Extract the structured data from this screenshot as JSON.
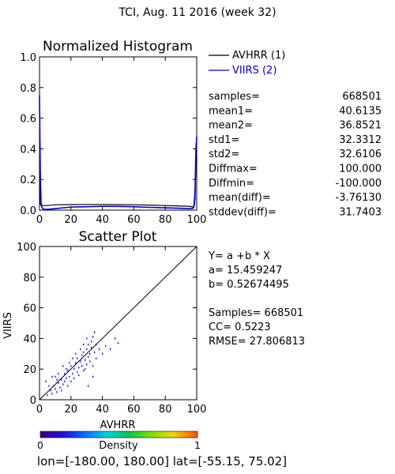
{
  "page_title": "TCI,  Aug. 11 2016 (week 32)",
  "colors": {
    "background": "#ffffff",
    "axis": "#000000",
    "avhrr_line": "#000000",
    "viirs_line": "#0000c8",
    "scatter_points": "#0000ff"
  },
  "histogram": {
    "title": "Normalized Histogram",
    "legend": [
      {
        "label": "AVHRR (1)",
        "color": "#000000"
      },
      {
        "label": "VIIRS (2)",
        "color": "#0000c8"
      }
    ],
    "stats": [
      {
        "label": "samples=",
        "value": "668501"
      },
      {
        "label": "mean1=",
        "value": "40.6135"
      },
      {
        "label": "mean2=",
        "value": "36.8521"
      },
      {
        "label": "std1=",
        "value": "32.3312"
      },
      {
        "label": "std2=",
        "value": "32.6106"
      },
      {
        "label": "Diffmax=",
        "value": "100.000"
      },
      {
        "label": "Diffmin=",
        "value": "-100.000"
      },
      {
        "label": "mean(diff)=",
        "value": "-3.76130"
      },
      {
        "label": "stddev(diff)=",
        "value": "31.7403"
      }
    ]
  },
  "scatter": {
    "title": "Scatter Plot",
    "stats_lines": [
      "Y= a +b * X",
      "a= 15.459247",
      "b= 0.52674495",
      "",
      "Samples= 668501",
      "CC=  0.5223",
      "RMSE= 27.806813"
    ]
  },
  "colorbar": {
    "label": "Density",
    "min_label": "0",
    "max_label": "1"
  },
  "footer": "lon=[-180.00, 180.00] lat=[-55.15, 75.02]",
  "chart_data": [
    {
      "type": "line",
      "title": "Normalized Histogram",
      "xlabel": "",
      "ylabel": "",
      "xlim": [
        0,
        100
      ],
      "ylim": [
        0,
        1
      ],
      "x_ticks": [
        0,
        20,
        40,
        60,
        80,
        100
      ],
      "y_ticks": [
        0.0,
        0.2,
        0.4,
        0.6,
        0.8,
        1.0
      ],
      "x_tick_labels": [
        "0",
        "20",
        "40",
        "60",
        "80",
        "100"
      ],
      "y_tick_labels": [
        "0.0",
        "0.2",
        "0.4",
        "0.6",
        "0.8",
        "1.0"
      ],
      "legend_position": "right",
      "series": [
        {
          "name": "AVHRR (1)",
          "color": "#000000",
          "x": [
            0,
            0.5,
            1,
            1.5,
            2,
            3,
            5,
            10,
            20,
            30,
            40,
            50,
            60,
            70,
            80,
            90,
            95,
            97,
            98,
            98.5,
            99,
            99.5,
            100
          ],
          "y": [
            0.2,
            0.04,
            0.03,
            0.03,
            0.03,
            0.03,
            0.03,
            0.035,
            0.036,
            0.037,
            0.037,
            0.036,
            0.035,
            0.033,
            0.03,
            0.027,
            0.025,
            0.022,
            0.02,
            0.03,
            0.08,
            0.35,
            0.47
          ]
        },
        {
          "name": "VIIRS (2)",
          "color": "#0000c8",
          "x": [
            0,
            0.5,
            1,
            1.5,
            2,
            3,
            5,
            10,
            20,
            30,
            40,
            50,
            60,
            70,
            80,
            90,
            95,
            97,
            98,
            98.5,
            99,
            99.5,
            100
          ],
          "y": [
            0.75,
            0.25,
            0.05,
            0.02,
            0.01,
            0.005,
            0.005,
            0.01,
            0.02,
            0.022,
            0.025,
            0.024,
            0.022,
            0.018,
            0.015,
            0.012,
            0.01,
            0.01,
            0.015,
            0.05,
            0.15,
            0.4,
            0.48
          ]
        }
      ]
    },
    {
      "type": "scatter",
      "title": "Scatter Plot",
      "xlabel": "AVHRR",
      "ylabel": "VIIRS",
      "xlim": [
        0,
        100
      ],
      "ylim": [
        0,
        100
      ],
      "x_ticks": [
        0,
        20,
        40,
        60,
        80,
        100
      ],
      "y_ticks": [
        0,
        20,
        40,
        60,
        80,
        100
      ],
      "x_tick_labels": [
        "0",
        "20",
        "40",
        "60",
        "80",
        "100"
      ],
      "y_tick_labels": [
        "0",
        "20",
        "40",
        "60",
        "80",
        "100"
      ],
      "reference_line": {
        "x": [
          0,
          100
        ],
        "y": [
          0,
          100
        ]
      },
      "series": [
        {
          "name": "",
          "color": "#0000ff",
          "points": [
            [
              5,
              3
            ],
            [
              7,
              6
            ],
            [
              8,
              4
            ],
            [
              9,
              9
            ],
            [
              10,
              7
            ],
            [
              11,
              5
            ],
            [
              12,
              11
            ],
            [
              13,
              8
            ],
            [
              14,
              13
            ],
            [
              15,
              10
            ],
            [
              16,
              12
            ],
            [
              16,
              17
            ],
            [
              17,
              14
            ],
            [
              18,
              9
            ],
            [
              18,
              19
            ],
            [
              19,
              15
            ],
            [
              20,
              12
            ],
            [
              20,
              22
            ],
            [
              21,
              17
            ],
            [
              22,
              20
            ],
            [
              22,
              14
            ],
            [
              23,
              24
            ],
            [
              24,
              18
            ],
            [
              24,
              27
            ],
            [
              25,
              21
            ],
            [
              25,
              16
            ],
            [
              26,
              25
            ],
            [
              27,
              29
            ],
            [
              27,
              22
            ],
            [
              28,
              19
            ],
            [
              28,
              31
            ],
            [
              29,
              26
            ],
            [
              30,
              23
            ],
            [
              30,
              33
            ],
            [
              31,
              28
            ],
            [
              31,
              36
            ],
            [
              32,
              25
            ],
            [
              32,
              30
            ],
            [
              33,
              38
            ],
            [
              33,
              34
            ],
            [
              34,
              22
            ],
            [
              34,
              41
            ],
            [
              35,
              31
            ],
            [
              35,
              44
            ],
            [
              36,
              27
            ],
            [
              36,
              36
            ],
            [
              38,
              33
            ],
            [
              40,
              30
            ],
            [
              42,
              35
            ],
            [
              45,
              33
            ],
            [
              48,
              40
            ],
            [
              50,
              37
            ],
            [
              10,
              15
            ],
            [
              12,
              17
            ],
            [
              14,
              6
            ],
            [
              6,
              9
            ],
            [
              4,
              12
            ],
            [
              8,
              15
            ],
            [
              21,
              27
            ],
            [
              26,
              33
            ],
            [
              30,
              40
            ],
            [
              28,
              36
            ],
            [
              19,
              24
            ],
            [
              23,
              30
            ],
            [
              29,
              20
            ],
            [
              34,
              15
            ],
            [
              31,
              9
            ],
            [
              15,
              22
            ],
            [
              17,
              20
            ],
            [
              11,
              13
            ]
          ]
        }
      ]
    }
  ]
}
